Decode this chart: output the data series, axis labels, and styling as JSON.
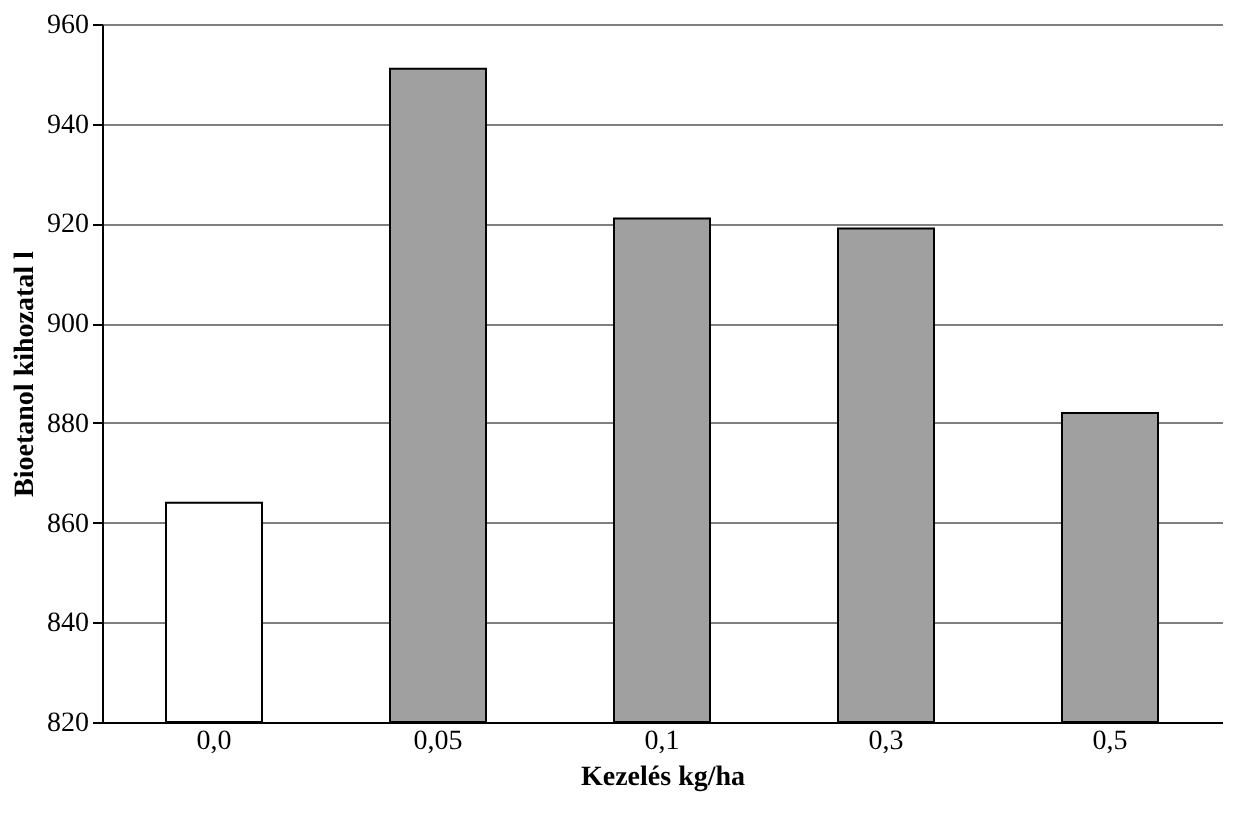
{
  "chart_data": {
    "type": "bar",
    "xlabel": "Kezelés kg/ha",
    "ylabel": "Bioetanol kihozatal l",
    "categories": [
      "0,0",
      "0,05",
      "0,1",
      "0,3",
      "0,5"
    ],
    "values": [
      864,
      951,
      921,
      919,
      882
    ],
    "colors": [
      "#ffffff",
      "#a0a0a0",
      "#a0a0a0",
      "#a0a0a0",
      "#a0a0a0"
    ],
    "ylim": [
      820,
      960
    ],
    "yticks": [
      820,
      840,
      860,
      880,
      900,
      920,
      940,
      960
    ],
    "grid": "y"
  }
}
